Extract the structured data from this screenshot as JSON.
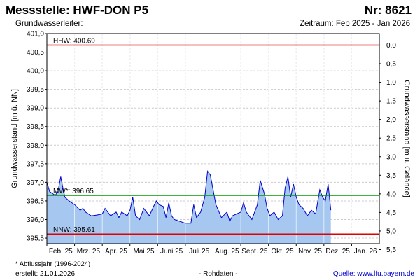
{
  "header": {
    "title": "Messstelle: HWF-DON P5",
    "nr": "Nr: 8621",
    "subtitle_left": "Grundwasserleiter:",
    "subtitle_right": "Zeitraum: Feb 2025 - Jan 2026"
  },
  "footer": {
    "footnote": "* Abflussjahr (1996-2024)",
    "created": "erstellt:  21.01.2026",
    "rohdaten": "- Rohdaten -",
    "source_label": "Quelle: ",
    "source_url": "www.lfu.bayern.de"
  },
  "colors": {
    "hhw": "#e00000",
    "mw": "#009900",
    "nnw": "#e00000",
    "line": "#0000cc",
    "fill": "#a6c8f0",
    "grid": "#cccccc"
  },
  "chart_data": {
    "type": "area",
    "ylabel": "Grundwasserstand [m ü. NN]",
    "ylabel_right": "Grundwasserstand [m u. Gelände]",
    "ylim": [
      395.35,
      401.0
    ],
    "yticks": [
      "401,0",
      "400,5",
      "400,0",
      "399,5",
      "399,0",
      "398,5",
      "398,0",
      "397,5",
      "397,0",
      "396,5",
      "396,0",
      "395,5"
    ],
    "yticks_right": [
      "0,0",
      "0,5",
      "1,0",
      "1,5",
      "2,0",
      "2,5",
      "3,0",
      "3,5",
      "4,0",
      "4,5",
      "5,0",
      "5,5"
    ],
    "ground_level": 400.69,
    "x_months": [
      "Feb. 25",
      "Mrz. 25",
      "Apr. 25",
      "Mai 25",
      "Juni 25",
      "Juli 25",
      "Aug. 25",
      "Sept. 25",
      "Okt. 25",
      "Nov. 25",
      "Dez. 25",
      "Jan. 26"
    ],
    "reference_lines": [
      {
        "label": "HHW: 400.69",
        "value": 400.69
      },
      {
        "label": "MW*: 396.65",
        "value": 396.65
      },
      {
        "label": "NNW: 395.61",
        "value": 395.61
      }
    ],
    "series": [
      {
        "x": [
          0,
          0.1,
          0.3,
          0.4,
          0.5,
          0.55,
          0.65,
          0.8,
          1.0,
          1.2,
          1.3,
          1.4,
          1.6,
          1.8,
          2.0,
          2.1,
          2.3,
          2.5,
          2.6,
          2.7,
          2.9,
          3.0,
          3.1,
          3.2,
          3.35,
          3.5,
          3.7,
          3.85,
          3.95,
          4.05,
          4.2,
          4.3,
          4.4,
          4.5,
          4.6,
          4.8,
          5.0,
          5.2,
          5.3,
          5.4,
          5.55,
          5.7,
          5.8,
          5.9,
          6.0,
          6.1,
          6.3,
          6.5,
          6.6,
          6.7,
          6.85,
          7.0,
          7.1,
          7.2,
          7.4,
          7.6,
          7.7,
          7.85,
          7.95,
          8.05,
          8.2,
          8.35,
          8.5,
          8.6,
          8.7,
          8.8,
          8.9,
          9.0,
          9.1,
          9.25,
          9.4,
          9.55,
          9.7,
          9.85,
          9.95,
          10.05,
          10.15,
          10.25
        ],
        "y": [
          397.0,
          396.75,
          396.65,
          396.75,
          397.15,
          396.95,
          396.6,
          396.5,
          396.4,
          396.25,
          396.3,
          396.2,
          396.1,
          396.12,
          396.15,
          396.3,
          396.1,
          396.2,
          396.05,
          396.2,
          396.1,
          396.25,
          396.6,
          396.1,
          396.0,
          396.3,
          396.1,
          396.35,
          396.5,
          396.4,
          396.35,
          396.05,
          396.45,
          396.1,
          396.0,
          395.95,
          395.9,
          395.9,
          396.4,
          396.05,
          396.2,
          396.6,
          397.3,
          397.2,
          396.8,
          396.4,
          396.05,
          396.2,
          395.95,
          396.1,
          396.15,
          396.2,
          396.45,
          396.2,
          396.0,
          396.4,
          397.05,
          396.7,
          396.3,
          396.1,
          396.2,
          396.0,
          396.1,
          396.85,
          397.15,
          396.6,
          396.95,
          396.6,
          396.4,
          396.3,
          396.1,
          396.25,
          396.15,
          396.8,
          396.6,
          396.5,
          396.95,
          396.25
        ],
        "values_note": "daily groundwater level, m ü. NN"
      }
    ]
  }
}
